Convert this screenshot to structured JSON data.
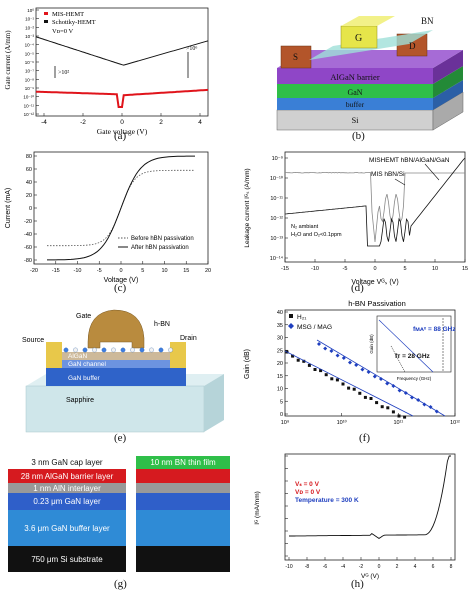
{
  "labels": {
    "a": "(a)",
    "b": "(b)",
    "c": "(c)",
    "d": "(d)",
    "e": "(e)",
    "f": "(f)",
    "g": "(g)",
    "h": "(h)"
  },
  "a": {
    "ylabel": "Gate current (A/mm)",
    "xlabel": "Gate voltage (V)",
    "legend": [
      "MIS-HEMT",
      "Schottky-HEMT",
      "Vᴅ=0 V"
    ],
    "yticks": [
      "10⁰",
      "10⁻¹",
      "10⁻²",
      "10⁻³",
      "10⁻⁴",
      "10⁻⁵",
      "10⁻⁶",
      "10⁻⁷",
      "10⁻⁸",
      "10⁻⁹",
      "10⁻¹⁰",
      "10⁻¹¹",
      "10⁻¹²"
    ],
    "xticks": [
      "-4",
      "-2",
      "0",
      "2",
      "4"
    ],
    "ann1": ">10⁶",
    "ann2": ">10²"
  },
  "b": {
    "layers": [
      "AlGaN barrier",
      "GaN",
      "buffer",
      "Si"
    ],
    "contacts": [
      "S",
      "G",
      "D"
    ],
    "bn": "BN"
  },
  "c": {
    "ylabel": "Current (mA)",
    "xlabel": "Voltage (V)",
    "legend": [
      "Before hBN passivation",
      "After hBN passivation"
    ],
    "yticks": [
      "80",
      "60",
      "40",
      "20",
      "0",
      "-20",
      "-40",
      "-60",
      "-80"
    ],
    "xticks": [
      "-20",
      "-15",
      "-10",
      "-5",
      "0",
      "5",
      "10",
      "15",
      "20"
    ]
  },
  "d": {
    "ylabel": "Leakage current Iᴳₛ (A/mm)",
    "xlabel": "Voltage Vᴳₛ (V)",
    "ann1": "MISHEMT hBN/AlGaN/GaN",
    "ann2": "MIS hBN/Si",
    "ann3": "N₂ ambiant",
    "ann4": "H₂O and O₂<0.1ppm",
    "yticks": [
      "10⁻⁹",
      "10⁻¹⁰",
      "10⁻¹¹",
      "10⁻¹²",
      "10⁻¹³",
      "10⁻¹⁴"
    ],
    "xticks": [
      "-15",
      "-10",
      "-5",
      "0",
      "5",
      "10",
      "15"
    ]
  },
  "e": {
    "labels": [
      "Gate",
      "h-BN",
      "Source",
      "Drain",
      "AlGaN",
      "GaN channel",
      "GaN buffer",
      "Sapphire"
    ]
  },
  "f": {
    "title": "h-BN Passivation",
    "ylabel": "Gain (dB)",
    "legend": [
      "H₂₁",
      "MSG / MAG"
    ],
    "ann1": "fᴛ = 28 GHz",
    "ann2": "fᴍᴀˣ = 88 GHz",
    "inset_ylabel": "Gain (dB)",
    "inset_xlabel": "Frequency (GHz)",
    "yticks": [
      "40",
      "35",
      "30",
      "25",
      "20",
      "15",
      "10",
      "5",
      "0"
    ],
    "xticks": [
      "10⁹",
      "10¹⁰",
      "10¹¹",
      "10¹²"
    ]
  },
  "g": {
    "left": [
      "3 nm GaN cap layer",
      "28 nm AlGaN barrier layer",
      "1 nm AlN interlayer",
      "0.23 μm GaN layer",
      "3.6 μm GaN buffer layer",
      "750 μm Si substrate"
    ],
    "right": [
      "10 nm BN thin film"
    ]
  },
  "h": {
    "ylabel": "Iᴳ (mA/mm)",
    "xlabel": "Vᴳ (V)",
    "ann": [
      "Vₛ = 0 V",
      "Vᴅ = 0 V",
      "Temperature = 300 K"
    ],
    "xticks": [
      "-10",
      "-8",
      "-6",
      "-4",
      "-2",
      "0",
      "2",
      "4",
      "6",
      "8"
    ]
  },
  "colors": {
    "red": "#e0141b",
    "blue": "#1f3fbf",
    "sienna": "#b3552a"
  }
}
